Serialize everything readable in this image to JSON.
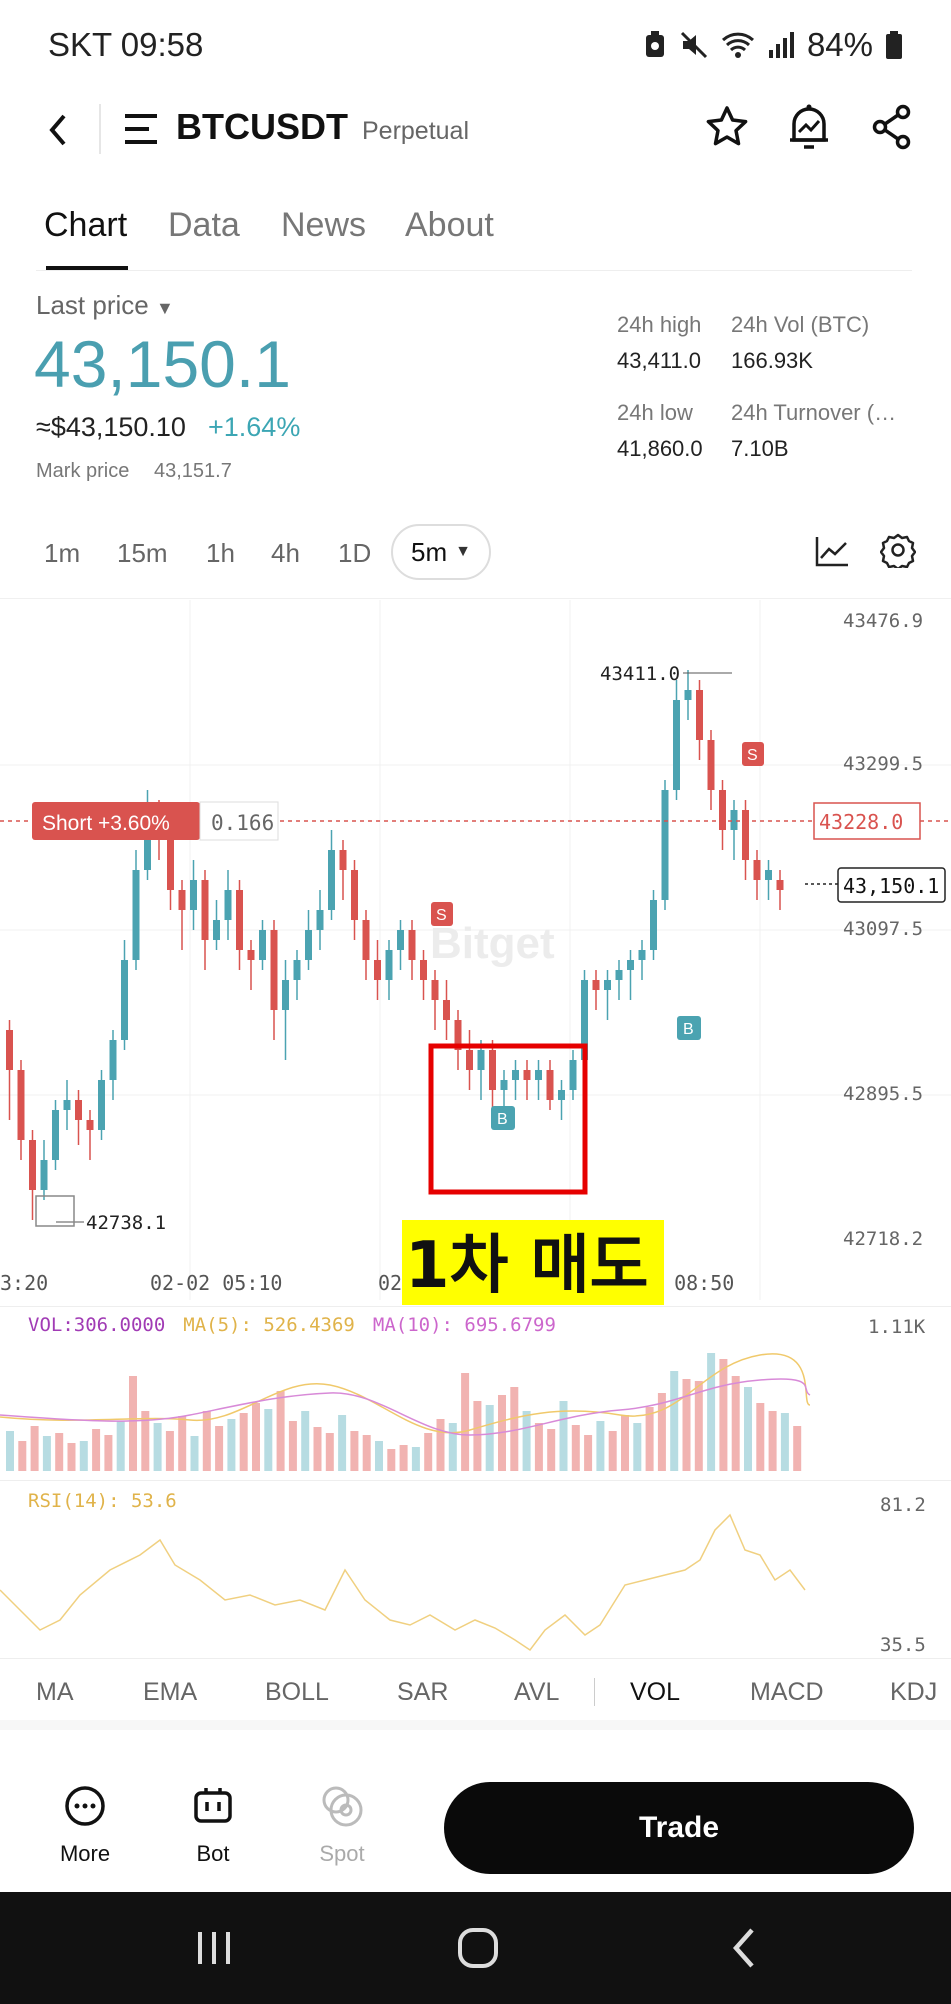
{
  "status_bar": {
    "carrier": "SKT",
    "time": "09:58",
    "battery": "84%"
  },
  "header": {
    "symbol": "BTCUSDT",
    "type": "Perpetual"
  },
  "tabs": [
    {
      "label": "Chart",
      "active": true
    },
    {
      "label": "Data"
    },
    {
      "label": "News"
    },
    {
      "label": "About"
    }
  ],
  "price": {
    "last_label": "Last price",
    "last": "43,150.1",
    "usd": "≈$43,150.10",
    "change": "+1.64%",
    "mark_label": "Mark price",
    "mark": "43,151.7",
    "high_label": "24h high",
    "high": "43,411.0",
    "vol_label": "24h Vol (BTC)",
    "vol": "166.93K",
    "low_label": "24h low",
    "low": "41,860.0",
    "turnover_label": "24h Turnover (…",
    "turnover": "7.10B"
  },
  "timeframes": [
    "1m",
    "15m",
    "1h",
    "4h",
    "1D"
  ],
  "timeframe_selected": "5m",
  "chart": {
    "axis_labels": [
      "43476.9",
      "43299.5",
      "43097.5",
      "42895.5",
      "42718.2"
    ],
    "high_marker": "43411.0",
    "low_marker": "42738.1",
    "short_label": "Short +3.60%",
    "short_qty": "0.166",
    "short_price": "43228.0",
    "current_price": "43,150.1",
    "time_labels": [
      "3:20",
      "02-02 05:10",
      "02",
      "2 08:50"
    ],
    "watermark": "Bitget",
    "annotation": "1차 매도",
    "sell_tag": "S",
    "buy_tag": "B"
  },
  "volume": {
    "label": "VOL:306.0000",
    "ma5": "MA(5): 526.4369",
    "ma10": "MA(10): 695.6799",
    "max": "1.11K"
  },
  "rsi": {
    "label": "RSI(14): 53.6",
    "max": "81.2",
    "min": "35.5"
  },
  "indicators": [
    "MA",
    "EMA",
    "BOLL",
    "SAR",
    "AVL",
    "VOL",
    "MACD",
    "KDJ"
  ],
  "indicator_selected": "VOL",
  "bottom": {
    "more": "More",
    "bot": "Bot",
    "spot": "Spot",
    "trade": "Trade"
  },
  "colors": {
    "up": "#4ba3b1",
    "down": "#d9534f",
    "price": "#4a9fb0",
    "change": "#3ca6b4"
  }
}
